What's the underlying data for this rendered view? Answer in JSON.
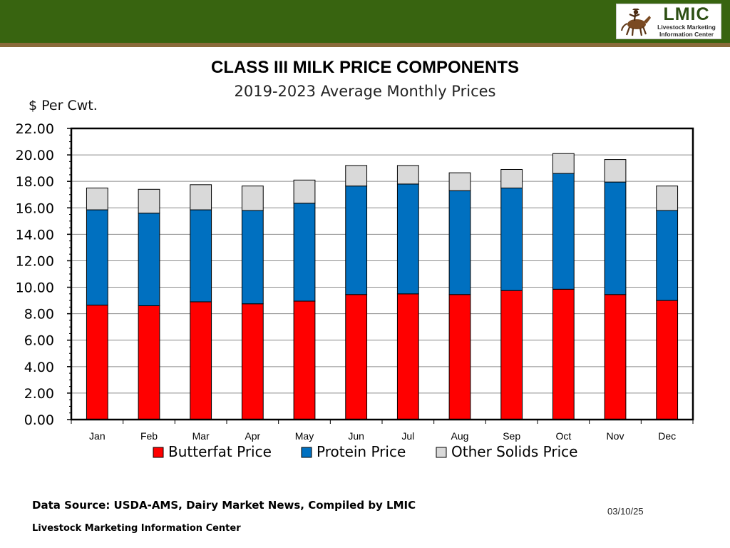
{
  "header": {
    "logo": {
      "name": "LMIC",
      "line1": "Livestock Marketing",
      "line2": "Information Center"
    }
  },
  "chart_data": {
    "type": "bar",
    "stacked": true,
    "title": "CLASS III MILK PRICE COMPONENTS",
    "subtitle": "2019-2023 Average Monthly Prices",
    "ylabel": "$ Per Cwt.",
    "xlabel": "",
    "ylim": [
      0,
      22
    ],
    "ytick_step": 2,
    "yticks": [
      "0.00",
      "2.00",
      "4.00",
      "6.00",
      "8.00",
      "10.00",
      "12.00",
      "14.00",
      "16.00",
      "18.00",
      "20.00",
      "22.00"
    ],
    "grid": true,
    "categories": [
      "Jan",
      "Feb",
      "Mar",
      "Apr",
      "May",
      "Jun",
      "Jul",
      "Aug",
      "Sep",
      "Oct",
      "Nov",
      "Dec"
    ],
    "series": [
      {
        "name": "Butterfat Price",
        "color": "#ff0000",
        "values": [
          8.65,
          8.6,
          8.9,
          8.75,
          8.95,
          9.45,
          9.5,
          9.45,
          9.75,
          9.85,
          9.45,
          9.0
        ]
      },
      {
        "name": "Protein Price",
        "color": "#0070c0",
        "values": [
          7.2,
          7.0,
          6.95,
          7.05,
          7.4,
          8.2,
          8.3,
          7.85,
          7.75,
          8.75,
          8.5,
          6.8
        ]
      },
      {
        "name": "Other Solids Price",
        "color": "#d9d9d9",
        "values": [
          1.65,
          1.8,
          1.9,
          1.85,
          1.75,
          1.55,
          1.4,
          1.35,
          1.4,
          1.5,
          1.7,
          1.85
        ]
      }
    ],
    "legend_position": "bottom"
  },
  "footer": {
    "source": "Data Source:  USDA-AMS, Dairy Market News, Compiled by LMIC",
    "date": "03/10/25",
    "org": "Livestock Marketing Information Center"
  }
}
